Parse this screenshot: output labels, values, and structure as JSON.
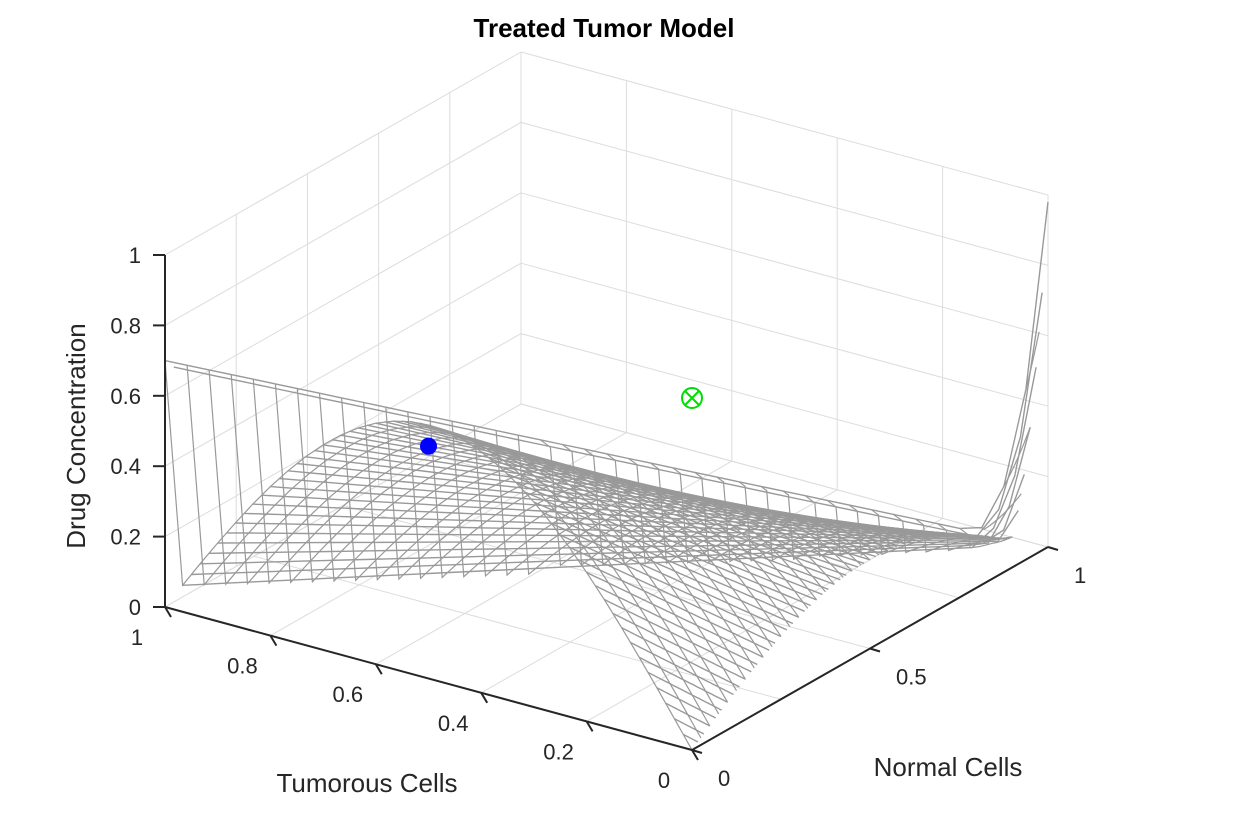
{
  "chart_data": {
    "type": "surface-3d-lines",
    "title": "Treated Tumor Model",
    "xlabel": "Normal Cells",
    "ylabel": "Tumorous Cells",
    "zlabel": "Drug Concentration",
    "xlim": [
      0,
      1
    ],
    "ylim": [
      0,
      1
    ],
    "zlim": [
      0,
      1
    ],
    "x_ticks": [
      "0",
      "0.5",
      "1"
    ],
    "y_ticks": [
      "0",
      "0.2",
      "0.4",
      "0.6",
      "0.8",
      "1"
    ],
    "z_ticks": [
      "0",
      "0.2",
      "0.4",
      "0.6",
      "0.8",
      "1"
    ],
    "grid": true,
    "line_color": "#999999",
    "surface": {
      "description_function": "z = x^2 + 4*y*(1 - x - y) rescaled; trajectories lie on simplex x + y <= 1",
      "n_lines": 60
    },
    "markers": [
      {
        "name": "",
        "x": 0.0,
        "y": 0.0,
        "z": 1.0,
        "symbol": "circle-x",
        "color": "#00dd00"
      },
      {
        "name": "",
        "x": 0.0,
        "y": 0.5,
        "z": 0.66,
        "symbol": "filled-circle",
        "color": "#0000ff"
      }
    ]
  }
}
